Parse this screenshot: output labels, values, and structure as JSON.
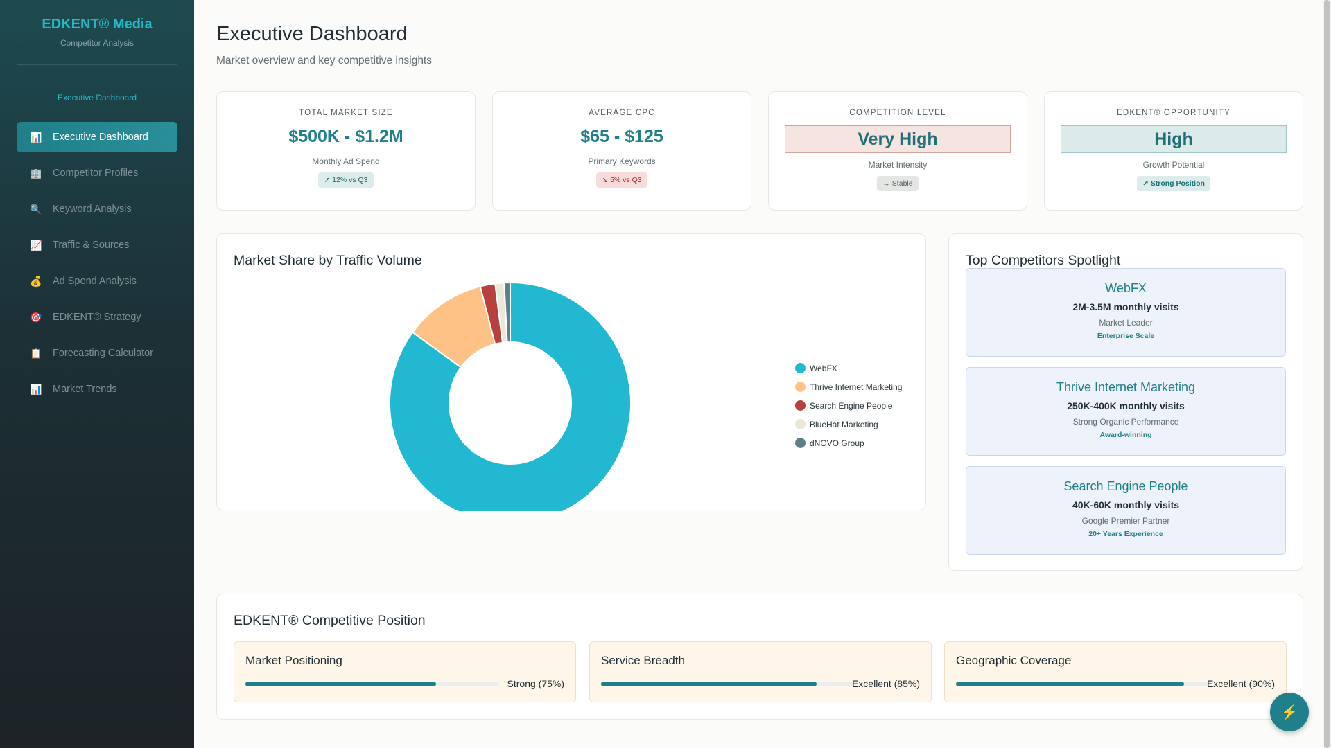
{
  "sidebar": {
    "brand_title": "EDKENT® Media",
    "brand_subtitle": "Competitor Analysis",
    "section_label": "Executive Dashboard",
    "items": [
      {
        "label": "Executive Dashboard",
        "icon": "📊",
        "active": true
      },
      {
        "label": "Competitor Profiles",
        "icon": "🏢",
        "active": false
      },
      {
        "label": "Keyword Analysis",
        "icon": "🔍",
        "active": false
      },
      {
        "label": "Traffic & Sources",
        "icon": "📈",
        "active": false
      },
      {
        "label": "Ad Spend Analysis",
        "icon": "💰",
        "active": false
      },
      {
        "label": "EDKENT® Strategy",
        "icon": "🎯",
        "active": false
      },
      {
        "label": "Forecasting Calculator",
        "icon": "📋",
        "active": false
      },
      {
        "label": "Market Trends",
        "icon": "📊",
        "active": false
      }
    ]
  },
  "header": {
    "title": "Executive Dashboard",
    "subtitle": "Market overview and key competitive insights"
  },
  "kpis": [
    {
      "label": "TOTAL MARKET SIZE",
      "value": "$500K - $1.2M",
      "note": "Monthly Ad Spend",
      "badge": "↗ 12% vs Q3"
    },
    {
      "label": "AVERAGE CPC",
      "value": "$65 - $125",
      "note": "Primary Keywords",
      "badge": "↘ 5% vs Q3"
    },
    {
      "label": "COMPETITION LEVEL",
      "value": "Very High",
      "note": "Market Intensity",
      "badge": "→ Stable"
    },
    {
      "label": "EDKENT® OPPORTUNITY",
      "value": "High",
      "note": "Growth Potential",
      "badge": "↗ Strong Position"
    }
  ],
  "market_share": {
    "title": "Market Share by Traffic Volume"
  },
  "chart_data": {
    "type": "pie",
    "title": "Market Share by Traffic Volume",
    "categories": [
      "WebFX",
      "Thrive Internet Marketing",
      "Search Engine People",
      "BlueHat Marketing",
      "dNOVO Group"
    ],
    "values": [
      85,
      11,
      2,
      1.2,
      0.8
    ],
    "colors": [
      "#22b8d1",
      "#fec286",
      "#b8403f",
      "#ece8d8",
      "#5e7f87"
    ],
    "legend_position": "right"
  },
  "spotlight": {
    "title": "Top Competitors Spotlight",
    "cards": [
      {
        "name": "WebFX",
        "visits": "2M-3.5M monthly visits",
        "desc": "Market Leader",
        "tag": "Enterprise Scale"
      },
      {
        "name": "Thrive Internet Marketing",
        "visits": "250K-400K monthly visits",
        "desc": "Strong Organic Performance",
        "tag": "Award-winning"
      },
      {
        "name": "Search Engine People",
        "visits": "40K-60K monthly visits",
        "desc": "Google Premier Partner",
        "tag": "20+ Years Experience"
      }
    ]
  },
  "position": {
    "title": "EDKENT® Competitive Position",
    "cards": [
      {
        "title": "Market Positioning",
        "value_label": "Strong (75%)",
        "percent": 75
      },
      {
        "title": "Service Breadth",
        "value_label": "Excellent (85%)",
        "percent": 85
      },
      {
        "title": "Geographic Coverage",
        "value_label": "Excellent (90%)",
        "percent": 90
      }
    ]
  },
  "fab": {
    "icon": "⚡"
  }
}
